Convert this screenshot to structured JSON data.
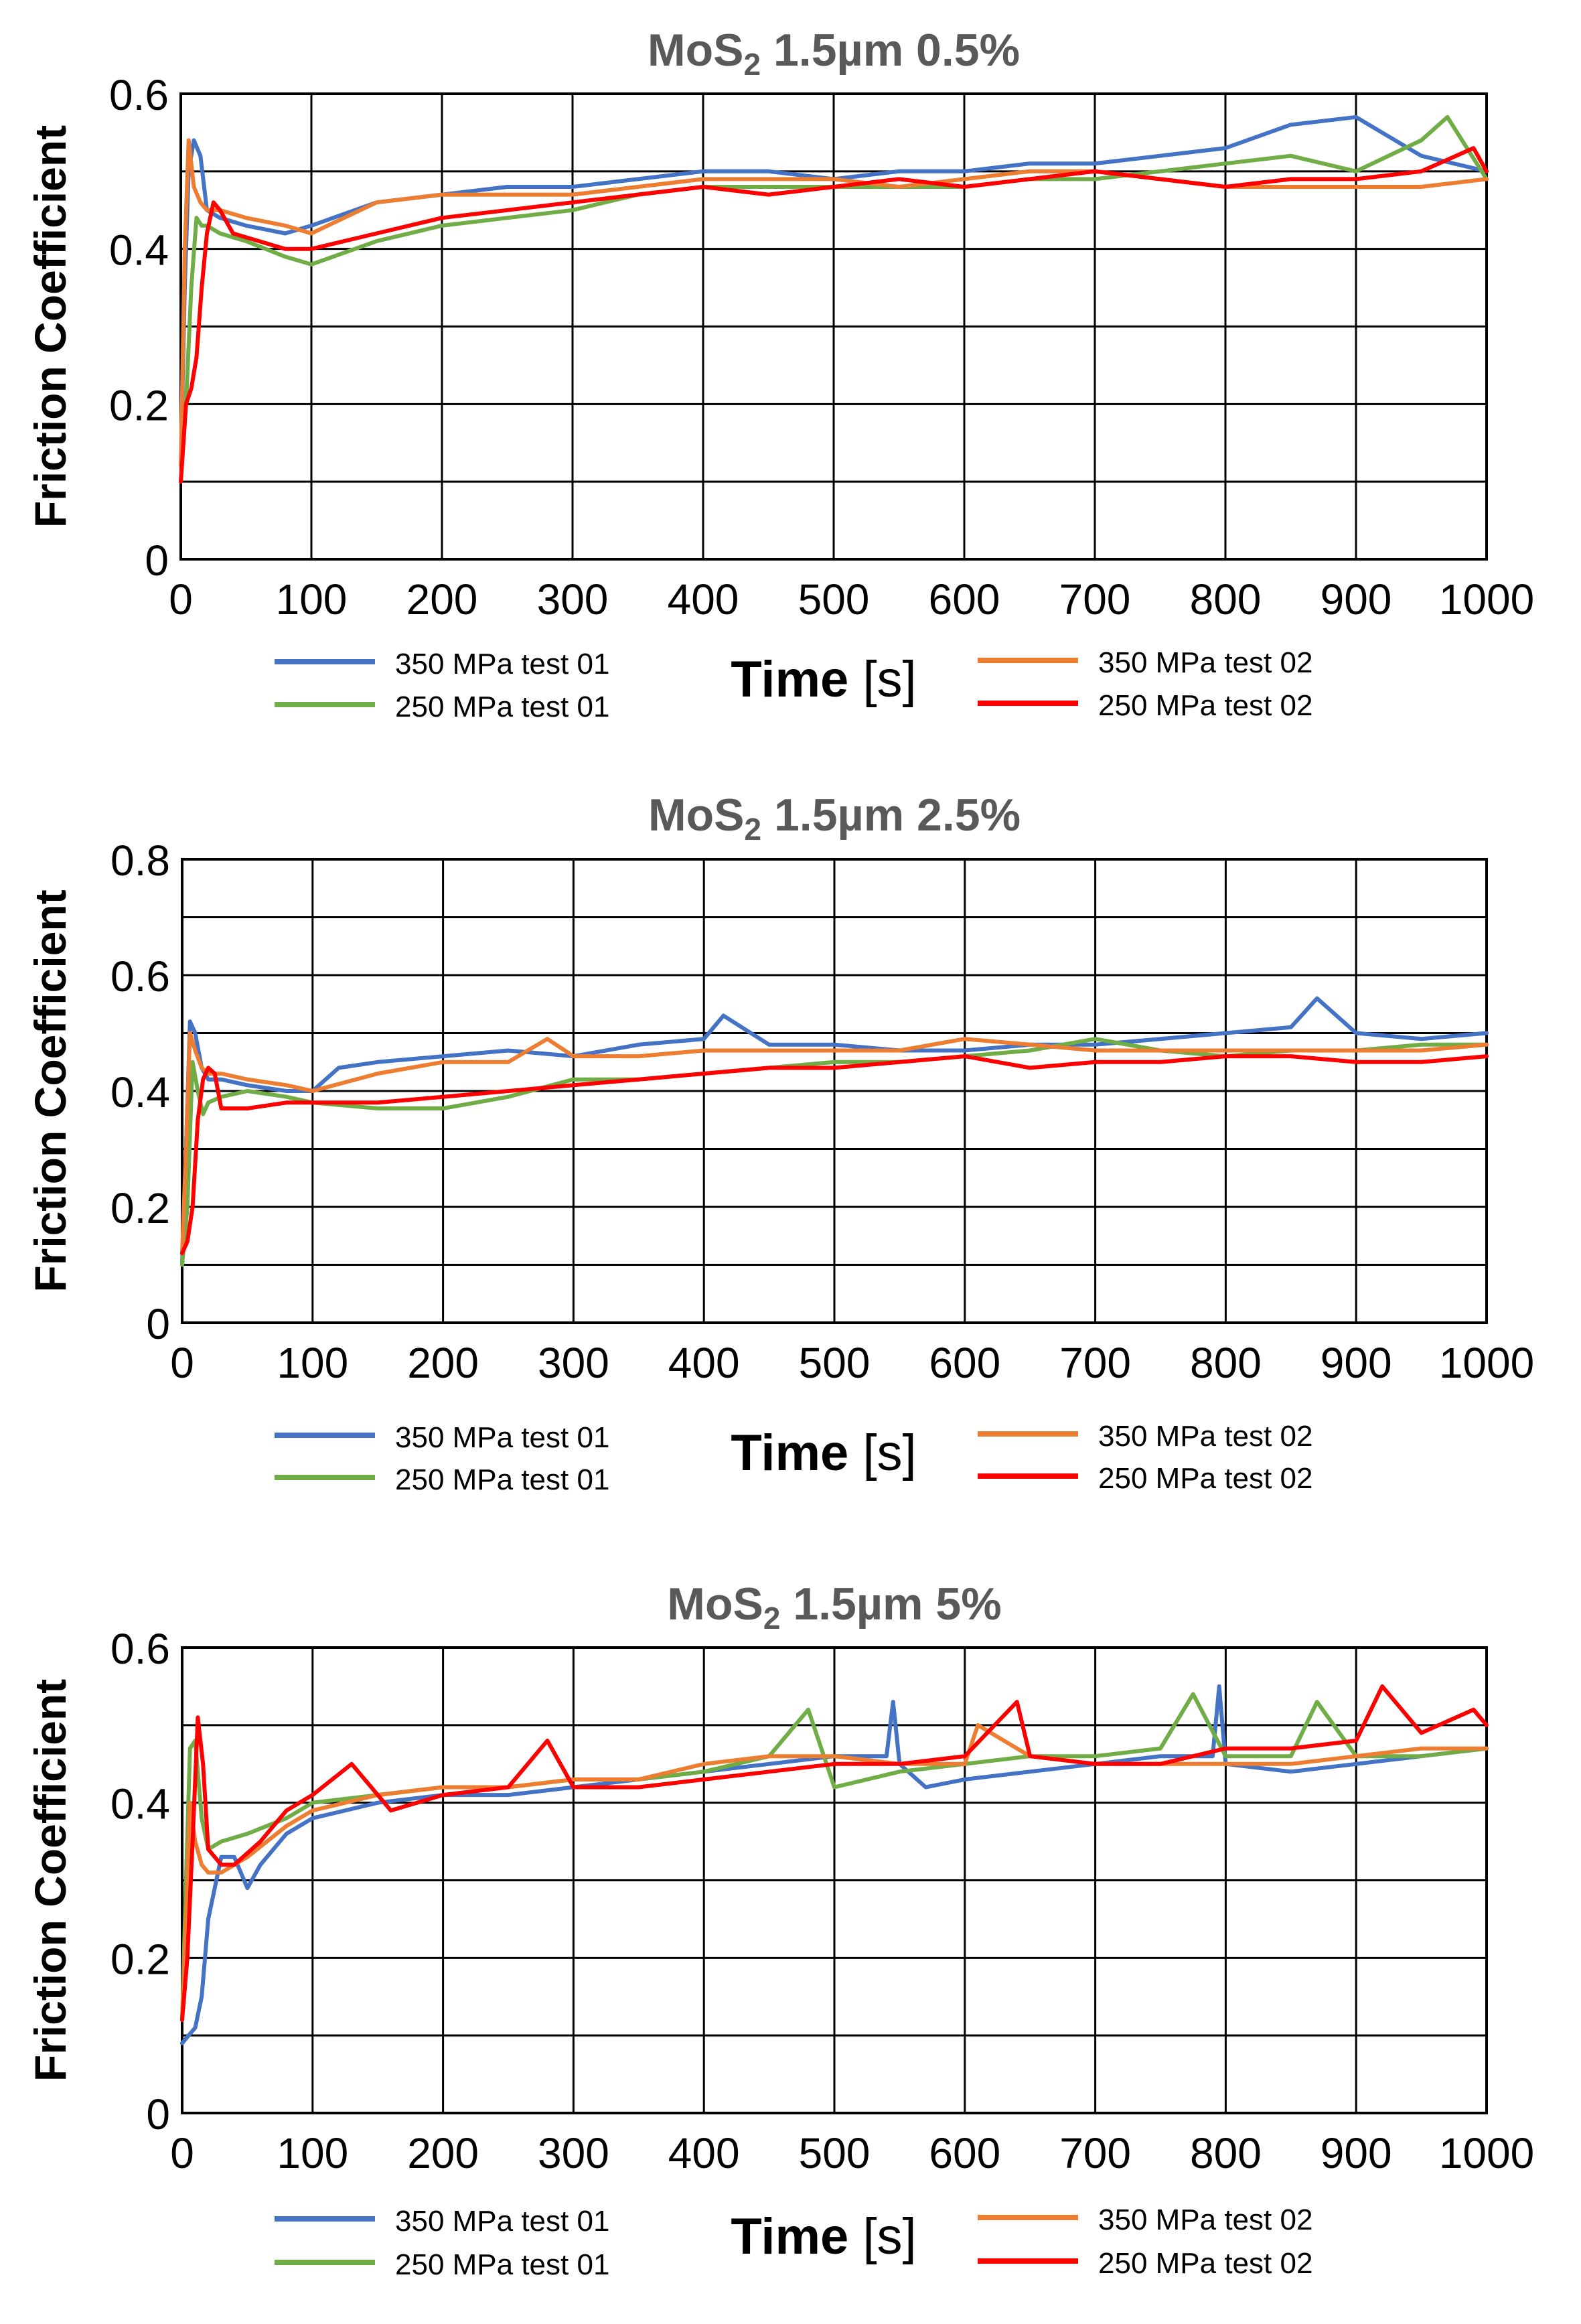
{
  "colors": {
    "s350_01": "#4472C4",
    "s250_01": "#70AD47",
    "s350_02": "#ED7D31",
    "s250_02": "#FF0000",
    "grid": "#000000",
    "title": "#595959"
  },
  "chart_data": [
    {
      "type": "line",
      "title_main": "MoS",
      "title_sub": "2",
      "title_rest": " 1.5µm 0.5%",
      "xlabel_bold": "Time",
      "xlabel_unit": " [s]",
      "ylabel": "Friction Coefficient",
      "xlim": [
        0,
        1000
      ],
      "ylim": [
        0,
        0.6
      ],
      "x_ticks": [
        0,
        100,
        200,
        300,
        400,
        500,
        600,
        700,
        800,
        900,
        1000
      ],
      "x_tick_labels": [
        "0",
        "100",
        "200",
        "300",
        "400",
        "500",
        "600",
        "700",
        "800",
        "900",
        "1000"
      ],
      "y_ticks": [
        0,
        0.2,
        0.4,
        0.6
      ],
      "y_tick_labels": [
        "0",
        "0.2",
        "0.4",
        "0.6"
      ],
      "y_grid": [
        0,
        0.1,
        0.2,
        0.3,
        0.4,
        0.5,
        0.6
      ],
      "series": [
        {
          "name": "350 MPa test 01",
          "color_key": "s350_01",
          "x": [
            0,
            3,
            6,
            10,
            15,
            20,
            30,
            50,
            80,
            100,
            150,
            200,
            250,
            300,
            350,
            400,
            450,
            500,
            550,
            600,
            650,
            700,
            750,
            800,
            850,
            900,
            950,
            1000
          ],
          "y": [
            0.12,
            0.35,
            0.5,
            0.54,
            0.52,
            0.45,
            0.44,
            0.43,
            0.42,
            0.43,
            0.46,
            0.47,
            0.48,
            0.48,
            0.49,
            0.5,
            0.5,
            0.49,
            0.5,
            0.5,
            0.51,
            0.51,
            0.52,
            0.53,
            0.56,
            0.57,
            0.52,
            0.5
          ]
        },
        {
          "name": "250 MPa test 01",
          "color_key": "s250_01",
          "x": [
            0,
            4,
            8,
            12,
            16,
            20,
            30,
            50,
            80,
            100,
            150,
            200,
            250,
            300,
            350,
            400,
            450,
            500,
            550,
            600,
            650,
            700,
            750,
            800,
            850,
            900,
            950,
            970,
            1000
          ],
          "y": [
            0.1,
            0.2,
            0.35,
            0.44,
            0.43,
            0.43,
            0.42,
            0.41,
            0.39,
            0.38,
            0.41,
            0.43,
            0.44,
            0.45,
            0.47,
            0.48,
            0.48,
            0.48,
            0.48,
            0.48,
            0.49,
            0.49,
            0.5,
            0.51,
            0.52,
            0.5,
            0.54,
            0.57,
            0.49
          ]
        },
        {
          "name": "350 MPa test 02",
          "color_key": "s350_02",
          "x": [
            0,
            3,
            6,
            10,
            15,
            20,
            30,
            50,
            80,
            100,
            150,
            200,
            250,
            300,
            350,
            400,
            450,
            500,
            550,
            600,
            650,
            700,
            750,
            800,
            850,
            900,
            950,
            1000
          ],
          "y": [
            0.12,
            0.4,
            0.54,
            0.48,
            0.46,
            0.45,
            0.45,
            0.44,
            0.43,
            0.42,
            0.46,
            0.47,
            0.47,
            0.47,
            0.48,
            0.49,
            0.49,
            0.49,
            0.48,
            0.49,
            0.5,
            0.5,
            0.49,
            0.48,
            0.48,
            0.48,
            0.48,
            0.49
          ]
        },
        {
          "name": "250 MPa test 02",
          "color_key": "s250_02",
          "x": [
            0,
            4,
            8,
            12,
            16,
            20,
            25,
            30,
            40,
            60,
            80,
            100,
            150,
            200,
            250,
            300,
            350,
            400,
            450,
            500,
            550,
            600,
            650,
            700,
            750,
            800,
            850,
            900,
            950,
            990,
            1000
          ],
          "y": [
            0.1,
            0.2,
            0.22,
            0.26,
            0.35,
            0.42,
            0.46,
            0.45,
            0.42,
            0.41,
            0.4,
            0.4,
            0.42,
            0.44,
            0.45,
            0.46,
            0.47,
            0.48,
            0.47,
            0.48,
            0.49,
            0.48,
            0.49,
            0.5,
            0.49,
            0.48,
            0.49,
            0.49,
            0.5,
            0.53,
            0.5
          ]
        }
      ]
    },
    {
      "type": "line",
      "title_main": "MoS",
      "title_sub": "2",
      "title_rest": " 1.5µm 2.5%",
      "xlabel_bold": "Time",
      "xlabel_unit": " [s]",
      "ylabel": "Friction Coefficient",
      "xlim": [
        0,
        1000
      ],
      "ylim": [
        0,
        0.8
      ],
      "x_ticks": [
        0,
        100,
        200,
        300,
        400,
        500,
        600,
        700,
        800,
        900,
        1000
      ],
      "x_tick_labels": [
        "0",
        "100",
        "200",
        "300",
        "400",
        "500",
        "600",
        "700",
        "800",
        "900",
        "1000"
      ],
      "y_ticks": [
        0,
        0.2,
        0.4,
        0.6,
        0.8
      ],
      "y_tick_labels": [
        "0",
        "0.2",
        "0.4",
        "0.6",
        "0.8"
      ],
      "y_grid": [
        0,
        0.1,
        0.2,
        0.3,
        0.4,
        0.5,
        0.6,
        0.7,
        0.8
      ],
      "series": [
        {
          "name": "350 MPa test 01",
          "color_key": "s350_01",
          "x": [
            0,
            3,
            6,
            10,
            15,
            20,
            30,
            50,
            80,
            100,
            120,
            150,
            200,
            250,
            300,
            350,
            400,
            415,
            450,
            500,
            550,
            600,
            650,
            700,
            750,
            800,
            850,
            870,
            900,
            950,
            1000
          ],
          "y": [
            0.1,
            0.3,
            0.52,
            0.5,
            0.44,
            0.42,
            0.42,
            0.41,
            0.4,
            0.4,
            0.44,
            0.45,
            0.46,
            0.47,
            0.46,
            0.48,
            0.49,
            0.53,
            0.48,
            0.48,
            0.47,
            0.47,
            0.48,
            0.48,
            0.49,
            0.5,
            0.51,
            0.56,
            0.5,
            0.49,
            0.5
          ]
        },
        {
          "name": "250 MPa test 01",
          "color_key": "s250_01",
          "x": [
            0,
            4,
            8,
            12,
            16,
            20,
            30,
            50,
            80,
            100,
            150,
            200,
            250,
            300,
            350,
            400,
            450,
            500,
            550,
            600,
            650,
            700,
            750,
            800,
            850,
            900,
            950,
            1000
          ],
          "y": [
            0.1,
            0.2,
            0.45,
            0.4,
            0.36,
            0.38,
            0.39,
            0.4,
            0.39,
            0.38,
            0.37,
            0.37,
            0.39,
            0.42,
            0.42,
            0.43,
            0.44,
            0.45,
            0.45,
            0.46,
            0.47,
            0.49,
            0.47,
            0.46,
            0.47,
            0.47,
            0.48,
            0.48
          ]
        },
        {
          "name": "350 MPa test 02",
          "color_key": "s350_02",
          "x": [
            0,
            3,
            6,
            10,
            15,
            20,
            30,
            50,
            80,
            100,
            150,
            200,
            250,
            280,
            300,
            350,
            400,
            450,
            500,
            550,
            600,
            650,
            700,
            750,
            800,
            850,
            900,
            950,
            1000
          ],
          "y": [
            0.12,
            0.3,
            0.5,
            0.47,
            0.44,
            0.43,
            0.43,
            0.42,
            0.41,
            0.4,
            0.43,
            0.45,
            0.45,
            0.49,
            0.46,
            0.46,
            0.47,
            0.47,
            0.47,
            0.47,
            0.49,
            0.48,
            0.47,
            0.47,
            0.47,
            0.47,
            0.47,
            0.47,
            0.48
          ]
        },
        {
          "name": "250 MPa test 02",
          "color_key": "s250_02",
          "x": [
            0,
            4,
            8,
            12,
            16,
            20,
            25,
            30,
            50,
            80,
            100,
            150,
            200,
            250,
            300,
            350,
            400,
            450,
            500,
            550,
            600,
            650,
            700,
            750,
            800,
            850,
            900,
            950,
            1000
          ],
          "y": [
            0.12,
            0.14,
            0.2,
            0.35,
            0.42,
            0.44,
            0.43,
            0.37,
            0.37,
            0.38,
            0.38,
            0.38,
            0.39,
            0.4,
            0.41,
            0.42,
            0.43,
            0.44,
            0.44,
            0.45,
            0.46,
            0.44,
            0.45,
            0.45,
            0.46,
            0.46,
            0.45,
            0.45,
            0.46
          ]
        }
      ]
    },
    {
      "type": "line",
      "title_main": "MoS",
      "title_sub": "2",
      "title_rest": " 1.5µm 5%",
      "xlabel_bold": "Time",
      "xlabel_unit": " [s]",
      "ylabel": "Friction Coefficient",
      "xlim": [
        0,
        1000
      ],
      "ylim": [
        0,
        0.6
      ],
      "x_ticks": [
        0,
        100,
        200,
        300,
        400,
        500,
        600,
        700,
        800,
        900,
        1000
      ],
      "x_tick_labels": [
        "0",
        "100",
        "200",
        "300",
        "400",
        "500",
        "600",
        "700",
        "800",
        "900",
        "1000"
      ],
      "y_ticks": [
        0,
        0.2,
        0.4,
        0.6
      ],
      "y_tick_labels": [
        "0",
        "0.2",
        "0.4",
        "0.6"
      ],
      "y_grid": [
        0,
        0.1,
        0.2,
        0.3,
        0.4,
        0.5,
        0.6
      ],
      "series": [
        {
          "name": "350 MPa test 01",
          "color_key": "s350_01",
          "x": [
            0,
            5,
            10,
            15,
            20,
            30,
            40,
            50,
            60,
            80,
            100,
            150,
            200,
            250,
            300,
            350,
            400,
            450,
            500,
            540,
            545,
            550,
            570,
            600,
            650,
            700,
            750,
            790,
            795,
            800,
            850,
            900,
            950,
            1000
          ],
          "y": [
            0.09,
            0.1,
            0.11,
            0.15,
            0.25,
            0.33,
            0.33,
            0.29,
            0.32,
            0.36,
            0.38,
            0.4,
            0.41,
            0.41,
            0.42,
            0.43,
            0.44,
            0.45,
            0.46,
            0.46,
            0.53,
            0.45,
            0.42,
            0.43,
            0.44,
            0.45,
            0.46,
            0.46,
            0.55,
            0.45,
            0.44,
            0.45,
            0.46,
            0.47
          ]
        },
        {
          "name": "250 MPa test 01",
          "color_key": "s250_01",
          "x": [
            0,
            3,
            6,
            10,
            15,
            20,
            30,
            50,
            80,
            100,
            150,
            200,
            250,
            300,
            350,
            400,
            450,
            480,
            500,
            550,
            600,
            650,
            700,
            750,
            775,
            800,
            850,
            870,
            900,
            950,
            1000
          ],
          "y": [
            0.12,
            0.3,
            0.47,
            0.48,
            0.38,
            0.34,
            0.35,
            0.36,
            0.38,
            0.4,
            0.41,
            0.42,
            0.42,
            0.43,
            0.43,
            0.44,
            0.46,
            0.52,
            0.42,
            0.44,
            0.45,
            0.46,
            0.46,
            0.47,
            0.54,
            0.46,
            0.46,
            0.53,
            0.46,
            0.46,
            0.47
          ]
        },
        {
          "name": "350 MPa test 02",
          "color_key": "s350_02",
          "x": [
            0,
            3,
            6,
            10,
            15,
            20,
            30,
            50,
            80,
            100,
            150,
            200,
            250,
            300,
            350,
            400,
            450,
            500,
            550,
            600,
            610,
            650,
            700,
            750,
            800,
            850,
            900,
            950,
            1000
          ],
          "y": [
            0.12,
            0.25,
            0.4,
            0.35,
            0.32,
            0.31,
            0.31,
            0.33,
            0.37,
            0.39,
            0.41,
            0.42,
            0.42,
            0.43,
            0.43,
            0.45,
            0.46,
            0.46,
            0.45,
            0.45,
            0.5,
            0.46,
            0.45,
            0.45,
            0.45,
            0.45,
            0.46,
            0.47,
            0.47
          ]
        },
        {
          "name": "250 MPa test 02",
          "color_key": "s250_02",
          "x": [
            0,
            4,
            8,
            12,
            16,
            20,
            30,
            40,
            60,
            80,
            100,
            130,
            160,
            200,
            250,
            280,
            300,
            350,
            400,
            450,
            500,
            550,
            600,
            640,
            650,
            700,
            750,
            800,
            850,
            900,
            920,
            950,
            990,
            1000
          ],
          "y": [
            0.12,
            0.2,
            0.35,
            0.51,
            0.45,
            0.34,
            0.32,
            0.32,
            0.35,
            0.39,
            0.41,
            0.45,
            0.39,
            0.41,
            0.42,
            0.48,
            0.42,
            0.42,
            0.43,
            0.44,
            0.45,
            0.45,
            0.46,
            0.53,
            0.46,
            0.45,
            0.45,
            0.47,
            0.47,
            0.48,
            0.55,
            0.49,
            0.52,
            0.5
          ]
        }
      ]
    }
  ]
}
